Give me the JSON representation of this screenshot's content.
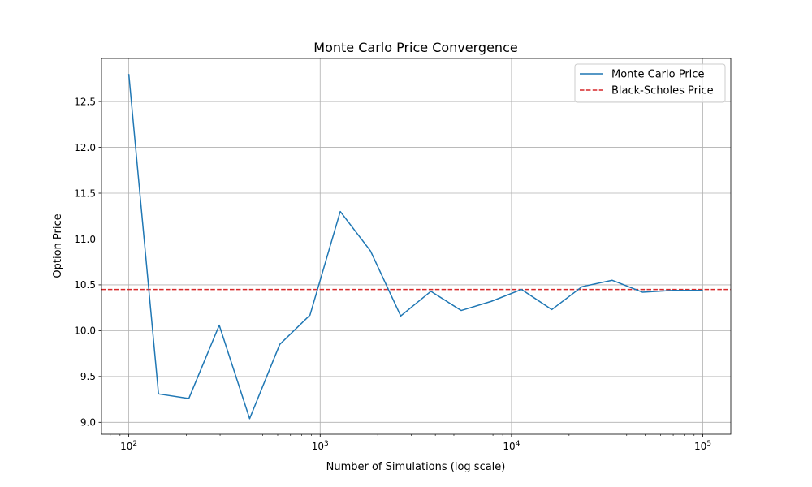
{
  "chart_data": {
    "type": "line",
    "title": "Monte Carlo Price Convergence",
    "xlabel": "Number of Simulations (log scale)",
    "ylabel": "Option Price",
    "x_scale": "log",
    "xlim": [
      72,
      140000
    ],
    "ylim": [
      8.87,
      12.97
    ],
    "grid": true,
    "legend_position": "top-right",
    "x_ticks": [
      {
        "value": 100,
        "base": "10",
        "exp": "2"
      },
      {
        "value": 1000,
        "base": "10",
        "exp": "3"
      },
      {
        "value": 10000,
        "base": "10",
        "exp": "4"
      },
      {
        "value": 100000,
        "base": "10",
        "exp": "5"
      }
    ],
    "y_ticks": [
      {
        "value": 9.0,
        "label": "9.0"
      },
      {
        "value": 9.5,
        "label": "9.5"
      },
      {
        "value": 10.0,
        "label": "10.0"
      },
      {
        "value": 10.5,
        "label": "10.5"
      },
      {
        "value": 11.0,
        "label": "11.0"
      },
      {
        "value": 11.5,
        "label": "11.5"
      },
      {
        "value": 12.0,
        "label": "12.0"
      },
      {
        "value": 12.5,
        "label": "12.5"
      }
    ],
    "series": [
      {
        "name": "Monte Carlo Price",
        "color": "#1f77b4",
        "style": "solid",
        "x": [
          100,
          143,
          206,
          297,
          428,
          615,
          885,
          1274,
          1833,
          2637,
          3793,
          5456,
          7848,
          11288,
          16238,
          23357,
          33598,
          48329,
          69519,
          100000
        ],
        "y": [
          12.8,
          9.31,
          9.26,
          10.06,
          9.04,
          9.85,
          10.17,
          11.3,
          10.87,
          10.16,
          10.43,
          10.22,
          10.32,
          10.45,
          10.23,
          10.48,
          10.55,
          10.42,
          10.44,
          10.44
        ]
      },
      {
        "name": "Black-Scholes Price",
        "color": "#d62728",
        "style": "dashed",
        "value": 10.45
      }
    ]
  }
}
